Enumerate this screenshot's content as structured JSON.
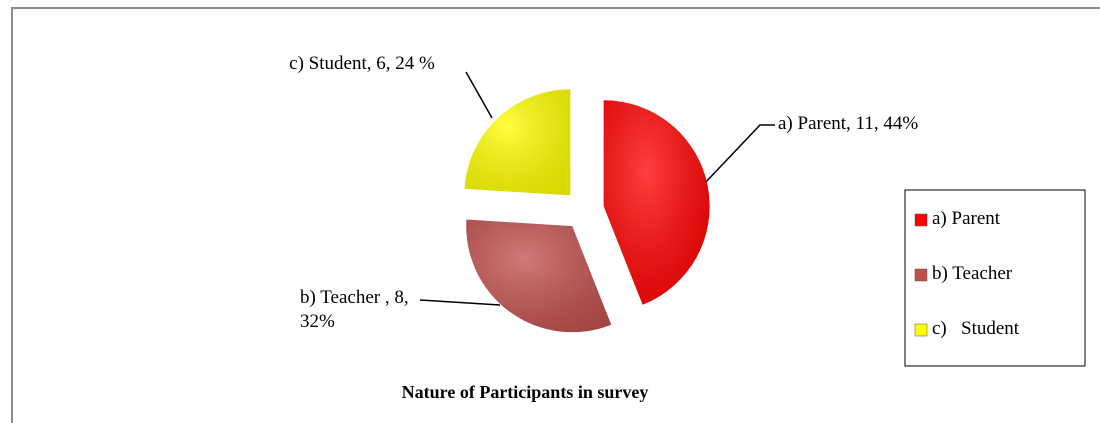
{
  "chart_data": {
    "type": "pie",
    "title": "Nature of Participants in survey",
    "categories": [
      "a) Parent",
      "b) Teacher",
      "c)   Student"
    ],
    "values": [
      11,
      8,
      6
    ],
    "value_labels": [
      "a) Parent, 11, 44%",
      "b) Teacher , 8, 32%",
      "c)   Student, 6, 24 %"
    ],
    "colors": [
      "#ff0000",
      "#c0504d",
      "#ffff00"
    ],
    "legend": "right"
  }
}
